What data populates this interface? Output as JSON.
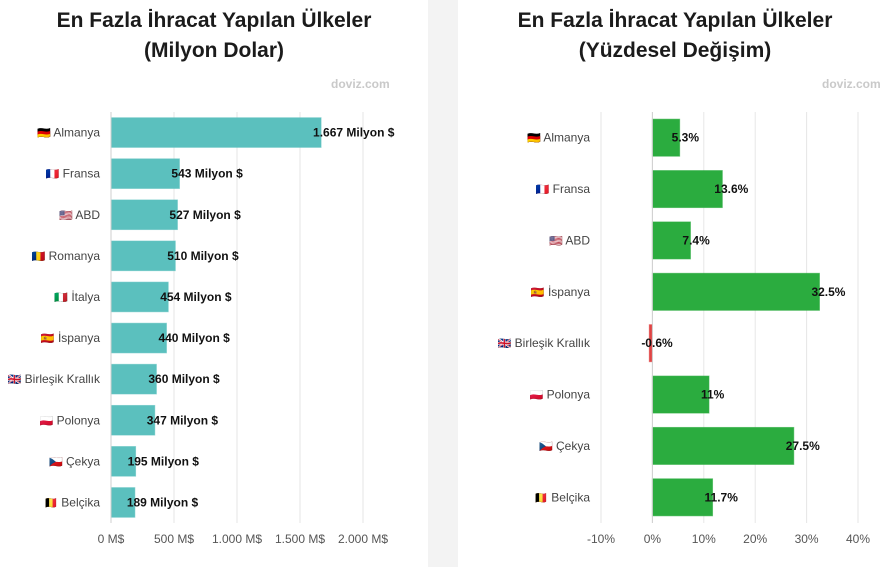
{
  "charts": {
    "left": {
      "title_line1": "En Fazla İhracat Yapılan Ülkeler",
      "title_line2": "(Milyon Dolar)",
      "credit": "doviz.com"
    },
    "right": {
      "title_line1": "En Fazla İhracat Yapılan Ülkeler",
      "title_line2": "(Yüzdesel Değişim)",
      "credit": "doviz.com"
    }
  },
  "colors": {
    "bar_left": "#5bc0be",
    "bar_positive": "#2bac3f",
    "bar_negative": "#e04444",
    "grid": "#e6e6e6"
  },
  "chart_data": [
    {
      "type": "bar",
      "orientation": "horizontal",
      "title": "En Fazla İhracat Yapılan Ülkeler (Milyon Dolar)",
      "categories": [
        {
          "flag": "🇩🇪",
          "name": "Almanya"
        },
        {
          "flag": "🇫🇷",
          "name": "Fransa"
        },
        {
          "flag": "🇺🇸",
          "name": "ABD"
        },
        {
          "flag": "🇷🇴",
          "name": "Romanya"
        },
        {
          "flag": "🇮🇹",
          "name": "İtalya"
        },
        {
          "flag": "🇪🇸",
          "name": "İspanya"
        },
        {
          "flag": "🇬🇧",
          "name": "Birleşik Krallık"
        },
        {
          "flag": "🇵🇱",
          "name": "Polonya"
        },
        {
          "flag": "🇨🇿",
          "name": "Çekya"
        },
        {
          "flag": "🇧🇪",
          "name": "Belçika"
        }
      ],
      "values": [
        1667,
        543,
        527,
        510,
        454,
        440,
        360,
        347,
        195,
        189
      ],
      "value_labels": [
        "1.667 Milyon $",
        "543 Milyon $",
        "527 Milyon $",
        "510 Milyon $",
        "454 Milyon $",
        "440 Milyon $",
        "360 Milyon $",
        "347 Milyon $",
        "195 Milyon $",
        "189 Milyon $"
      ],
      "xlim": [
        0,
        2000
      ],
      "ticks": [
        0,
        500,
        1000,
        1500,
        2000
      ],
      "tick_labels": [
        "0 M$",
        "500 M$",
        "1.000 M$",
        "1.500 M$",
        "2.000 M$"
      ],
      "xlabel": "",
      "ylabel": "",
      "grid": true
    },
    {
      "type": "bar",
      "orientation": "horizontal",
      "title": "En Fazla İhracat Yapılan Ülkeler (Yüzdesel Değişim)",
      "categories": [
        {
          "flag": "🇩🇪",
          "name": "Almanya"
        },
        {
          "flag": "🇫🇷",
          "name": "Fransa"
        },
        {
          "flag": "🇺🇸",
          "name": "ABD"
        },
        {
          "flag": "🇪🇸",
          "name": "İspanya"
        },
        {
          "flag": "🇬🇧",
          "name": "Birleşik Krallık"
        },
        {
          "flag": "🇵🇱",
          "name": "Polonya"
        },
        {
          "flag": "🇨🇿",
          "name": "Çekya"
        },
        {
          "flag": "🇧🇪",
          "name": "Belçika"
        }
      ],
      "values": [
        5.3,
        13.6,
        7.4,
        32.5,
        -0.6,
        11,
        27.5,
        11.7
      ],
      "value_labels": [
        "5.3%",
        "13.6%",
        "7.4%",
        "32.5%",
        "-0.6%",
        "11%",
        "27.5%",
        "11.7%"
      ],
      "xlim": [
        -10,
        40
      ],
      "ticks": [
        -10,
        0,
        10,
        20,
        30,
        40
      ],
      "tick_labels": [
        "-10%",
        "0%",
        "10%",
        "20%",
        "30%",
        "40%"
      ],
      "xlabel": "",
      "ylabel": "",
      "grid": true
    }
  ]
}
